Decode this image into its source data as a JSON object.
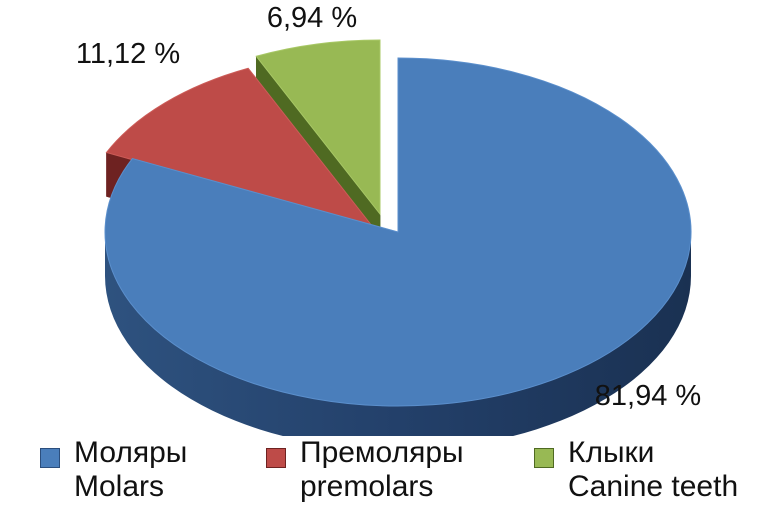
{
  "chart_data": {
    "type": "pie",
    "title": "",
    "slices": [
      {
        "name_ru": "Моляры",
        "name_en": "Molars",
        "value": 81.94,
        "label": "81,94 %",
        "color": "#4A7EBB",
        "side": "#2B4E7D",
        "top_hi": "#5B8FCC"
      },
      {
        "name_ru": "Премоляры",
        "name_en": "premolars",
        "value": 11.12,
        "label": "11,12 %",
        "color": "#BE4B48",
        "side": "#6E2221",
        "top_hi": "#CC5C58"
      },
      {
        "name_ru": "Клыки",
        "name_en": "Canine teeth",
        "value": 6.94,
        "label": "6,94 %",
        "color": "#98B954",
        "side": "#4F6A22",
        "top_hi": "#A8C866"
      }
    ],
    "legend_position": "bottom"
  }
}
